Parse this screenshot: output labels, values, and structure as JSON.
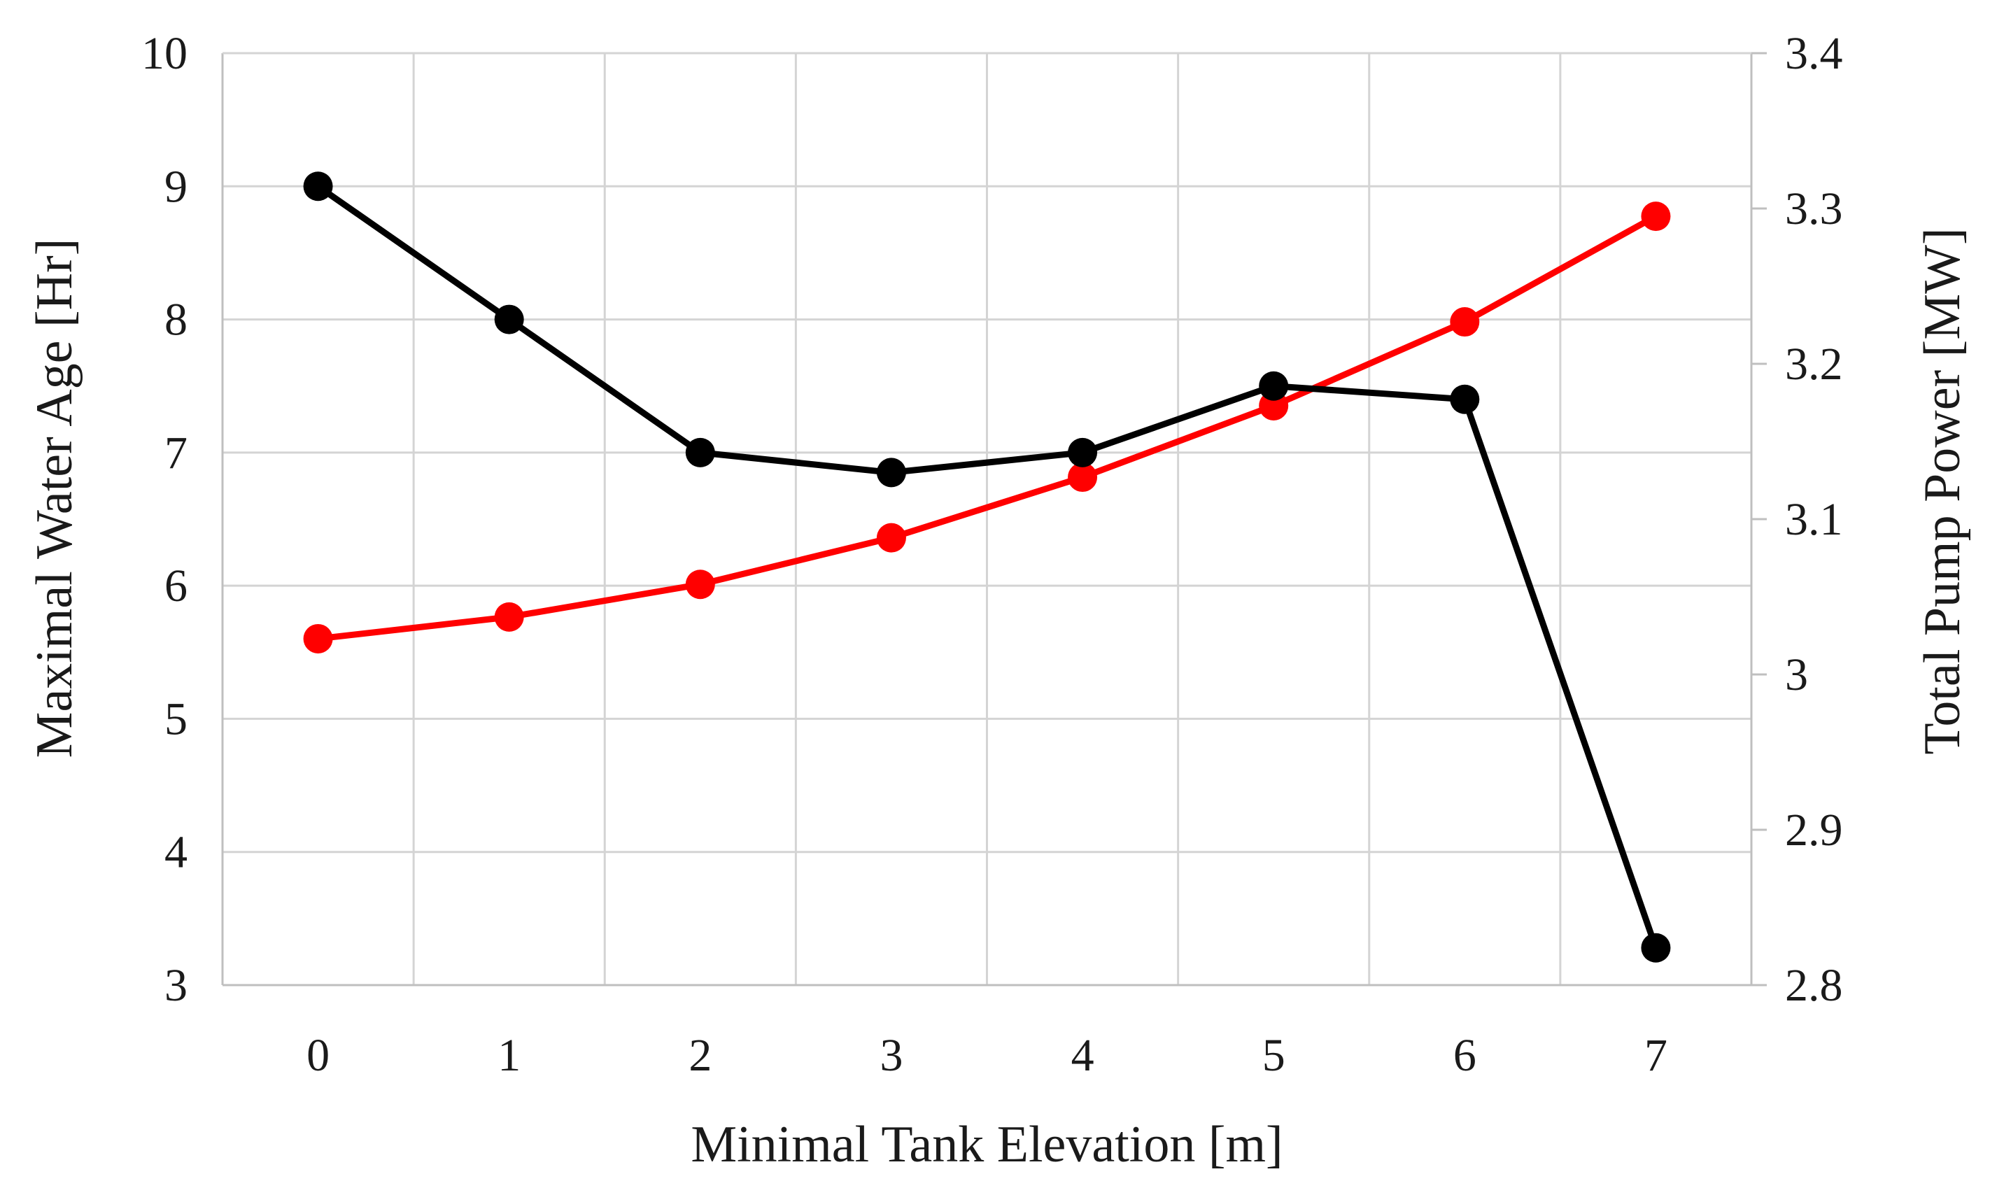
{
  "chart_data": {
    "type": "line",
    "title": "",
    "xlabel": "Minimal Tank Elevation [m]",
    "ylabel_left": "Maximal Water Age [Hr]",
    "ylabel_right": "Total Pump Power [MW]",
    "x": [
      0,
      1,
      2,
      3,
      4,
      5,
      6,
      7
    ],
    "x_tick_labels": [
      "0",
      "1",
      "2",
      "3",
      "4",
      "5",
      "6",
      "7"
    ],
    "ylim_left": [
      3,
      10
    ],
    "yticks_left": [
      "3",
      "4",
      "5",
      "6",
      "7",
      "8",
      "9",
      "10"
    ],
    "ylim_right": [
      2.8,
      3.4
    ],
    "yticks_right": [
      "2.8",
      "2.9",
      "3",
      "3.1",
      "3.2",
      "3.3",
      "3.4"
    ],
    "grid": true,
    "series": [
      {
        "name": "Maximal Water Age",
        "axis": "left",
        "color": "#000000",
        "values": [
          9.0,
          8.0,
          7.0,
          6.85,
          7.0,
          7.5,
          7.4,
          3.28
        ]
      },
      {
        "name": "Total Pump Power",
        "axis": "right",
        "color": "#ff0000",
        "values": [
          3.023,
          3.037,
          3.058,
          3.088,
          3.127,
          3.173,
          3.227,
          3.295
        ]
      }
    ]
  }
}
